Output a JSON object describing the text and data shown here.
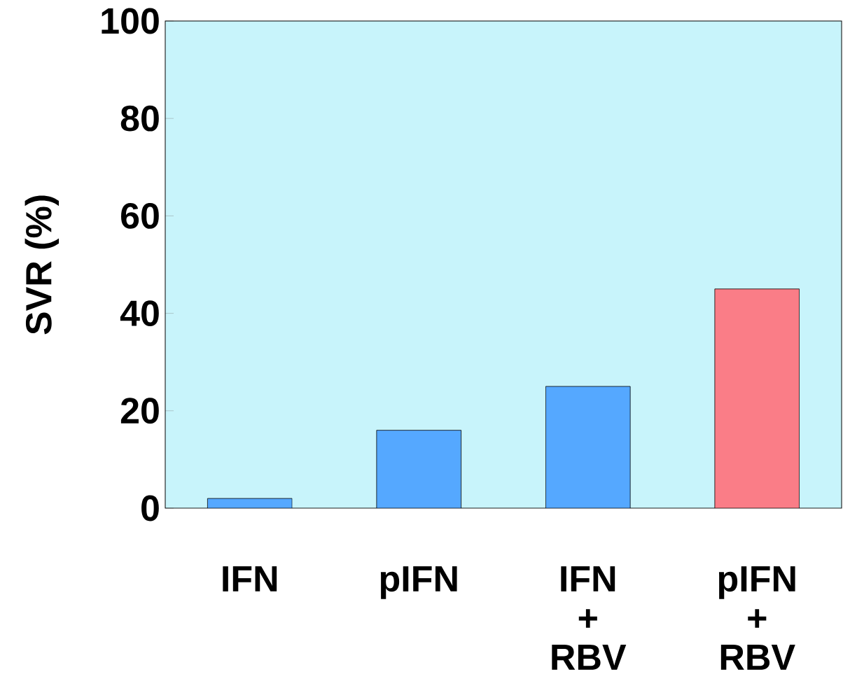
{
  "chart_data": {
    "type": "bar",
    "ylabel": "SVR (%)",
    "categories": [
      "IFN",
      "pIFN",
      "IFN + RBV",
      "pIFN + RBV"
    ],
    "values": [
      2,
      16,
      25,
      45
    ],
    "colors": [
      "#55a8ff",
      "#55a8ff",
      "#55a8ff",
      "#fa7d87"
    ],
    "ylim": [
      0,
      100
    ],
    "yticks": [
      0,
      20,
      40,
      60,
      80,
      100
    ]
  }
}
